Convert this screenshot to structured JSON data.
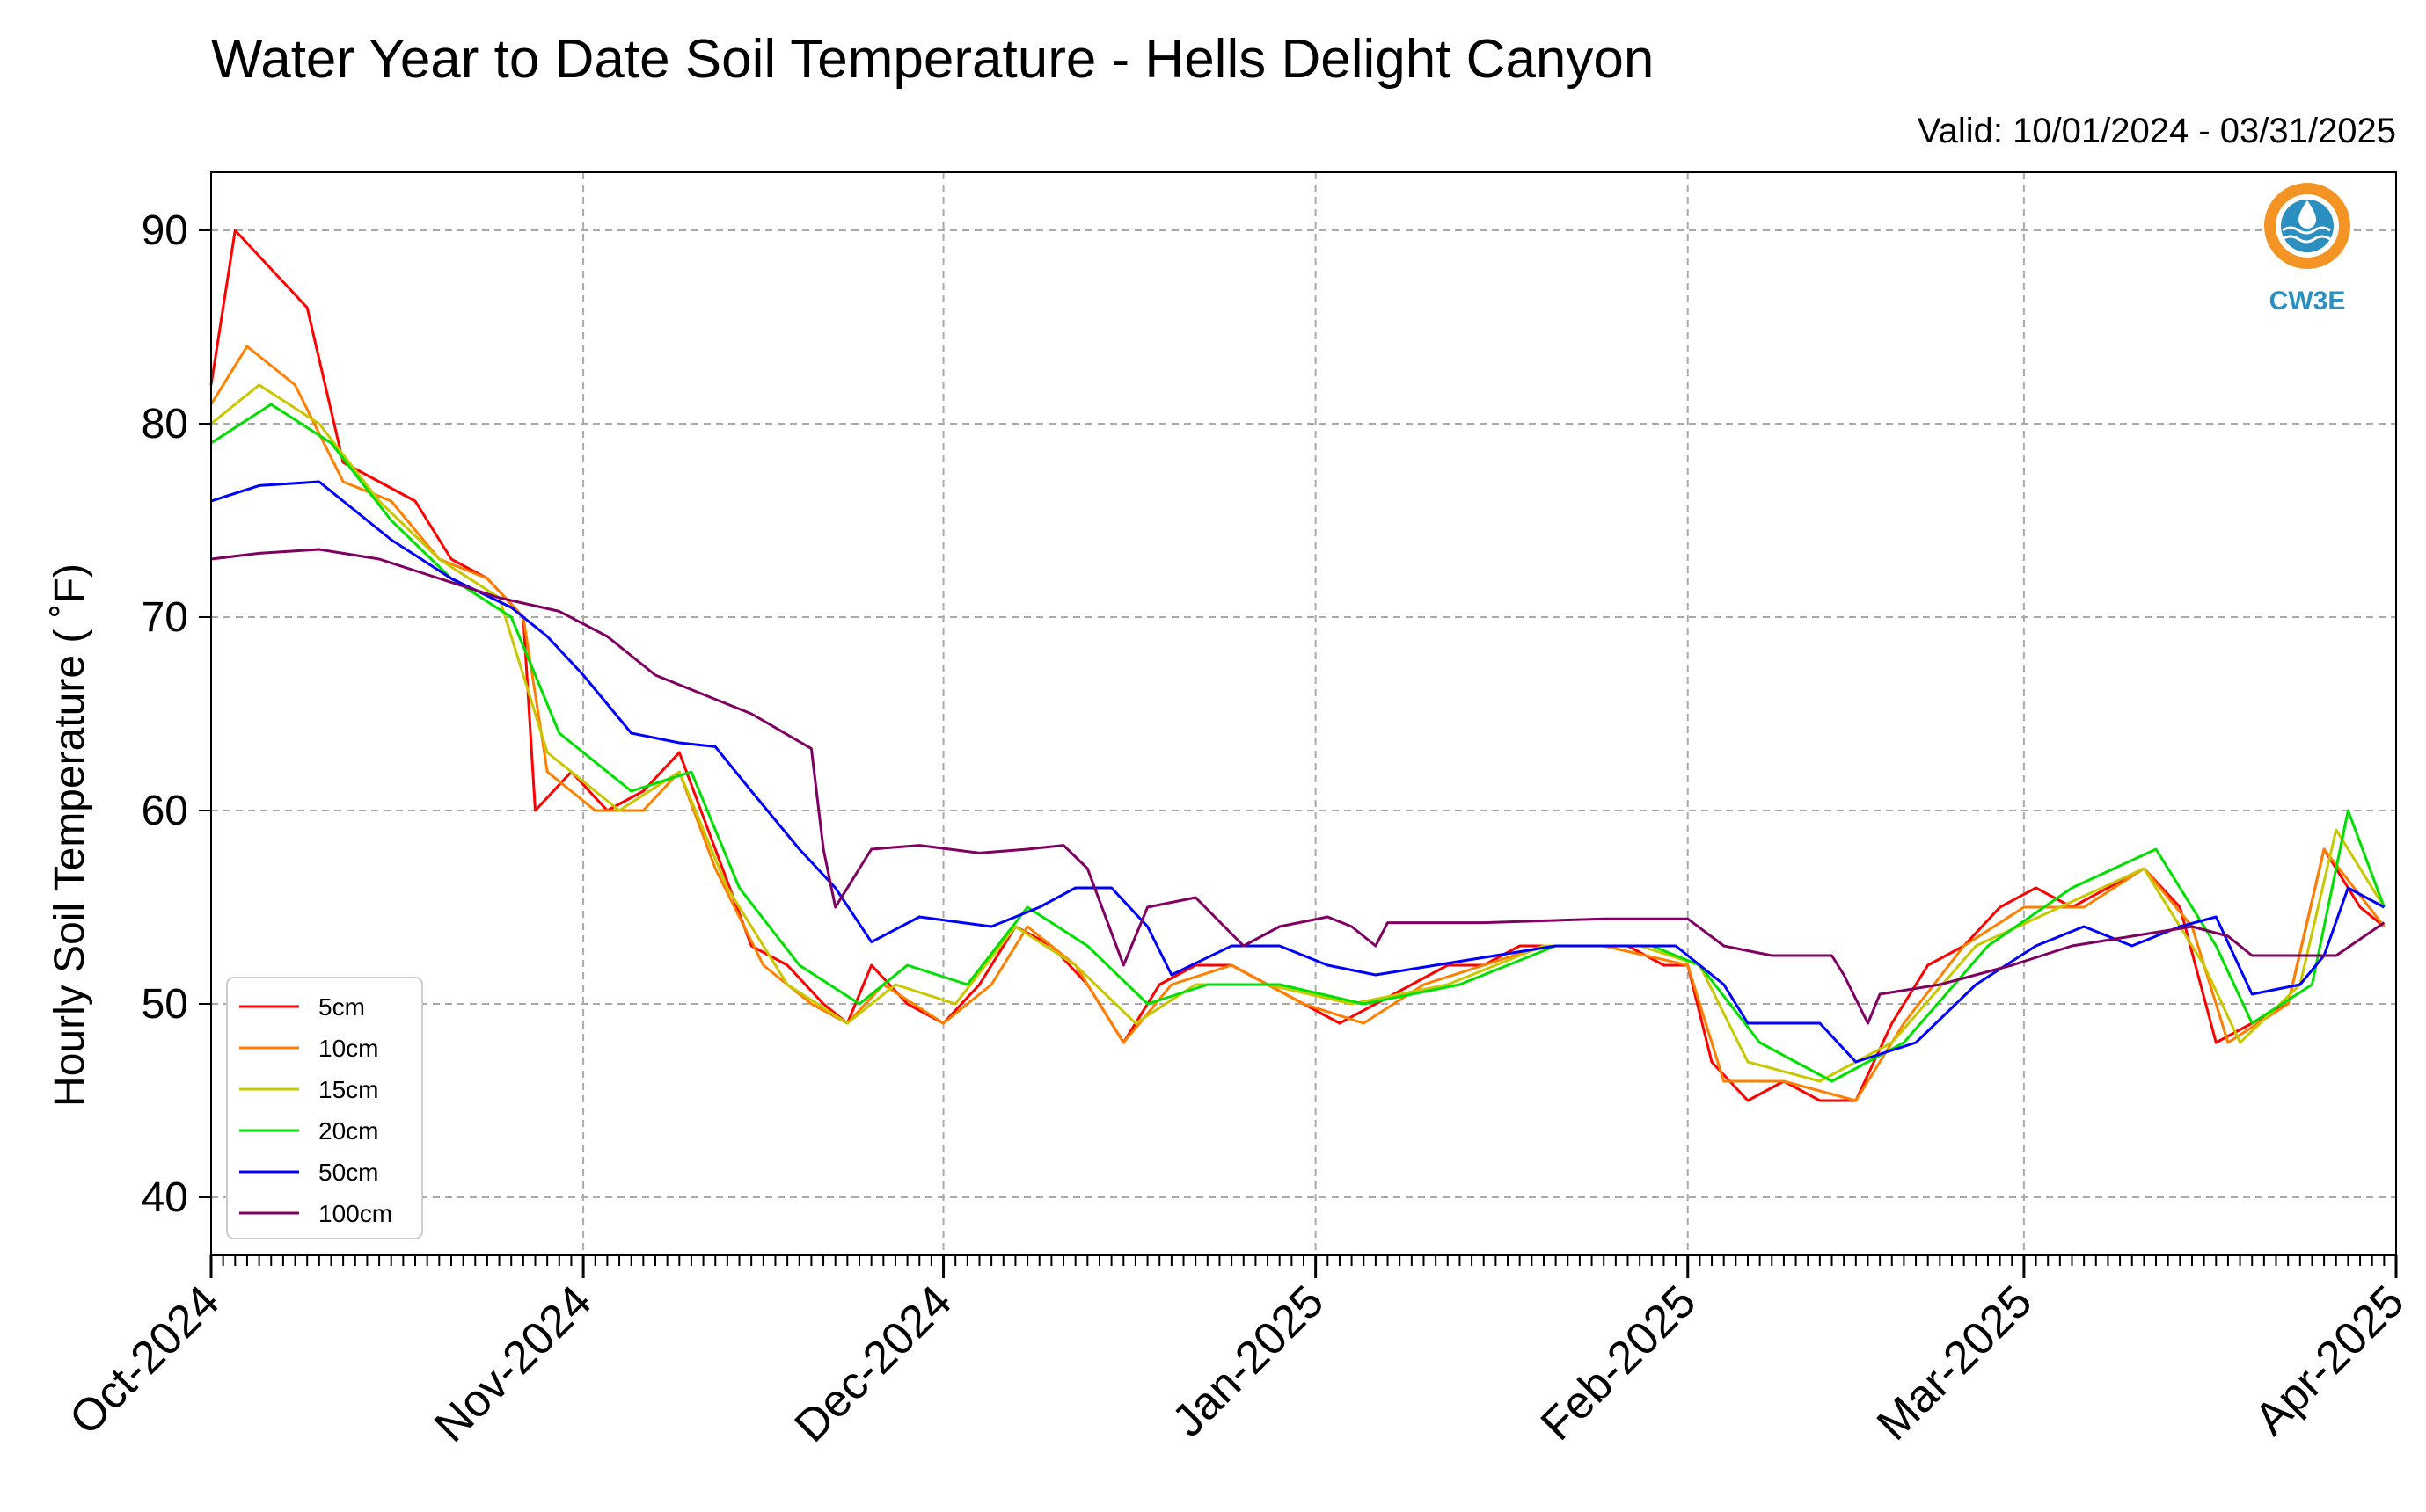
{
  "chart_data": {
    "type": "line",
    "title": "Water Year to Date Soil Temperature - Hells Delight Canyon",
    "subtitle": "Valid: 10/01/2024 - 03/31/2025",
    "xlabel": "",
    "ylabel": "Hourly Soil Temperature ( ˚F)",
    "ylim": [
      37,
      93
    ],
    "yticks": [
      40,
      50,
      60,
      70,
      80,
      90
    ],
    "xlim": [
      "2024-10-01",
      "2025-04-01"
    ],
    "xticks": [
      {
        "date": "2024-10-01",
        "label": "Oct-2024"
      },
      {
        "date": "2024-11-01",
        "label": "Nov-2024"
      },
      {
        "date": "2024-12-01",
        "label": "Dec-2024"
      },
      {
        "date": "2025-01-01",
        "label": "Jan-2025"
      },
      {
        "date": "2025-02-01",
        "label": "Feb-2025"
      },
      {
        "date": "2025-03-01",
        "label": "Mar-2025"
      },
      {
        "date": "2025-04-01",
        "label": "Apr-2025"
      }
    ],
    "grid": true,
    "legend_position": "lower-left",
    "logo_text": "CW3E",
    "series": [
      {
        "name": "5cm",
        "color": "#ff0000",
        "points": [
          [
            "2024-10-01",
            82
          ],
          [
            "2024-10-03",
            90
          ],
          [
            "2024-10-06",
            88
          ],
          [
            "2024-10-09",
            86
          ],
          [
            "2024-10-12",
            78
          ],
          [
            "2024-10-15",
            77
          ],
          [
            "2024-10-18",
            76
          ],
          [
            "2024-10-21",
            73
          ],
          [
            "2024-10-24",
            72
          ],
          [
            "2024-10-27",
            70
          ],
          [
            "2024-10-28",
            60
          ],
          [
            "2024-10-31",
            62
          ],
          [
            "2024-11-03",
            60
          ],
          [
            "2024-11-06",
            61
          ],
          [
            "2024-11-09",
            63
          ],
          [
            "2024-11-12",
            58
          ],
          [
            "2024-11-15",
            53
          ],
          [
            "2024-11-18",
            52
          ],
          [
            "2024-11-21",
            50
          ],
          [
            "2024-11-23",
            49
          ],
          [
            "2024-11-25",
            52
          ],
          [
            "2024-11-28",
            50
          ],
          [
            "2024-12-01",
            49
          ],
          [
            "2024-12-04",
            51
          ],
          [
            "2024-12-07",
            54
          ],
          [
            "2024-12-10",
            53
          ],
          [
            "2024-12-13",
            51
          ],
          [
            "2024-12-16",
            48
          ],
          [
            "2024-12-19",
            51
          ],
          [
            "2024-12-22",
            52
          ],
          [
            "2024-12-25",
            52
          ],
          [
            "2024-12-28",
            51
          ],
          [
            "2024-12-31",
            50
          ],
          [
            "2025-01-03",
            49
          ],
          [
            "2025-01-06",
            50
          ],
          [
            "2025-01-09",
            51
          ],
          [
            "2025-01-12",
            52
          ],
          [
            "2025-01-15",
            52
          ],
          [
            "2025-01-18",
            53
          ],
          [
            "2025-01-21",
            53
          ],
          [
            "2025-01-24",
            53
          ],
          [
            "2025-01-27",
            53
          ],
          [
            "2025-01-30",
            52
          ],
          [
            "2025-02-01",
            52
          ],
          [
            "2025-02-03",
            47
          ],
          [
            "2025-02-06",
            45
          ],
          [
            "2025-02-09",
            46
          ],
          [
            "2025-02-12",
            45
          ],
          [
            "2025-02-15",
            45
          ],
          [
            "2025-02-18",
            49
          ],
          [
            "2025-02-21",
            52
          ],
          [
            "2025-02-24",
            53
          ],
          [
            "2025-02-27",
            55
          ],
          [
            "2025-03-02",
            56
          ],
          [
            "2025-03-05",
            55
          ],
          [
            "2025-03-08",
            56
          ],
          [
            "2025-03-11",
            57
          ],
          [
            "2025-03-14",
            55
          ],
          [
            "2025-03-17",
            48
          ],
          [
            "2025-03-20",
            49
          ],
          [
            "2025-03-23",
            50
          ],
          [
            "2025-03-26",
            58
          ],
          [
            "2025-03-29",
            55
          ],
          [
            "2025-03-31",
            54
          ]
        ]
      },
      {
        "name": "10cm",
        "color": "#ff8000",
        "points": [
          [
            "2024-10-01",
            81
          ],
          [
            "2024-10-04",
            84
          ],
          [
            "2024-10-08",
            82
          ],
          [
            "2024-10-12",
            77
          ],
          [
            "2024-10-16",
            76
          ],
          [
            "2024-10-20",
            73
          ],
          [
            "2024-10-24",
            72
          ],
          [
            "2024-10-27",
            70
          ],
          [
            "2024-10-29",
            62
          ],
          [
            "2024-11-02",
            60
          ],
          [
            "2024-11-06",
            60
          ],
          [
            "2024-11-09",
            62
          ],
          [
            "2024-11-12",
            57
          ],
          [
            "2024-11-16",
            52
          ],
          [
            "2024-11-20",
            50
          ],
          [
            "2024-11-23",
            49
          ],
          [
            "2024-11-26",
            51
          ],
          [
            "2024-12-01",
            49
          ],
          [
            "2024-12-05",
            51
          ],
          [
            "2024-12-08",
            54
          ],
          [
            "2024-12-12",
            52
          ],
          [
            "2024-12-16",
            48
          ],
          [
            "2024-12-20",
            51
          ],
          [
            "2024-12-25",
            52
          ],
          [
            "2024-12-31",
            50
          ],
          [
            "2025-01-05",
            49
          ],
          [
            "2025-01-10",
            51
          ],
          [
            "2025-01-15",
            52
          ],
          [
            "2025-01-20",
            53
          ],
          [
            "2025-01-25",
            53
          ],
          [
            "2025-02-01",
            52
          ],
          [
            "2025-02-04",
            46
          ],
          [
            "2025-02-09",
            46
          ],
          [
            "2025-02-15",
            45
          ],
          [
            "2025-02-19",
            49
          ],
          [
            "2025-02-24",
            53
          ],
          [
            "2025-03-01",
            55
          ],
          [
            "2025-03-06",
            55
          ],
          [
            "2025-03-11",
            57
          ],
          [
            "2025-03-15",
            54
          ],
          [
            "2025-03-18",
            48
          ],
          [
            "2025-03-23",
            50
          ],
          [
            "2025-03-26",
            58
          ],
          [
            "2025-03-31",
            54
          ]
        ]
      },
      {
        "name": "15cm",
        "color": "#c8c800",
        "points": [
          [
            "2024-10-01",
            80
          ],
          [
            "2024-10-05",
            82
          ],
          [
            "2024-10-10",
            80
          ],
          [
            "2024-10-15",
            76
          ],
          [
            "2024-10-20",
            73
          ],
          [
            "2024-10-25",
            71
          ],
          [
            "2024-10-29",
            63
          ],
          [
            "2024-11-04",
            60
          ],
          [
            "2024-11-09",
            62
          ],
          [
            "2024-11-13",
            56
          ],
          [
            "2024-11-18",
            51
          ],
          [
            "2024-11-23",
            49
          ],
          [
            "2024-11-27",
            51
          ],
          [
            "2024-12-02",
            50
          ],
          [
            "2024-12-07",
            54
          ],
          [
            "2024-12-12",
            52
          ],
          [
            "2024-12-17",
            49
          ],
          [
            "2024-12-22",
            51
          ],
          [
            "2024-12-28",
            51
          ],
          [
            "2025-01-04",
            50
          ],
          [
            "2025-01-12",
            51
          ],
          [
            "2025-01-20",
            53
          ],
          [
            "2025-01-28",
            53
          ],
          [
            "2025-02-02",
            52
          ],
          [
            "2025-02-06",
            47
          ],
          [
            "2025-02-12",
            46
          ],
          [
            "2025-02-18",
            48
          ],
          [
            "2025-02-25",
            53
          ],
          [
            "2025-03-04",
            55
          ],
          [
            "2025-03-11",
            57
          ],
          [
            "2025-03-16",
            52
          ],
          [
            "2025-03-19",
            48
          ],
          [
            "2025-03-24",
            51
          ],
          [
            "2025-03-27",
            59
          ],
          [
            "2025-03-31",
            55
          ]
        ]
      },
      {
        "name": "20cm",
        "color": "#00e000",
        "points": [
          [
            "2024-10-01",
            79
          ],
          [
            "2024-10-06",
            81
          ],
          [
            "2024-10-11",
            79
          ],
          [
            "2024-10-16",
            75
          ],
          [
            "2024-10-21",
            72
          ],
          [
            "2024-10-26",
            70
          ],
          [
            "2024-10-30",
            64
          ],
          [
            "2024-11-05",
            61
          ],
          [
            "2024-11-10",
            62
          ],
          [
            "2024-11-14",
            56
          ],
          [
            "2024-11-19",
            52
          ],
          [
            "2024-11-24",
            50
          ],
          [
            "2024-11-28",
            52
          ],
          [
            "2024-12-03",
            51
          ],
          [
            "2024-12-08",
            55
          ],
          [
            "2024-12-13",
            53
          ],
          [
            "2024-12-18",
            50
          ],
          [
            "2024-12-23",
            51
          ],
          [
            "2024-12-29",
            51
          ],
          [
            "2025-01-05",
            50
          ],
          [
            "2025-01-13",
            51
          ],
          [
            "2025-01-21",
            53
          ],
          [
            "2025-01-29",
            53
          ],
          [
            "2025-02-02",
            52
          ],
          [
            "2025-02-07",
            48
          ],
          [
            "2025-02-13",
            46
          ],
          [
            "2025-02-19",
            48
          ],
          [
            "2025-02-26",
            53
          ],
          [
            "2025-03-05",
            56
          ],
          [
            "2025-03-12",
            58
          ],
          [
            "2025-03-17",
            53
          ],
          [
            "2025-03-20",
            49
          ],
          [
            "2025-03-25",
            51
          ],
          [
            "2025-03-28",
            60
          ],
          [
            "2025-03-31",
            55
          ]
        ]
      },
      {
        "name": "50cm",
        "color": "#0000ff",
        "points": [
          [
            "2024-10-01",
            76
          ],
          [
            "2024-10-05",
            76.8
          ],
          [
            "2024-10-10",
            77
          ],
          [
            "2024-10-13",
            75.5
          ],
          [
            "2024-10-16",
            74
          ],
          [
            "2024-10-21",
            72
          ],
          [
            "2024-10-26",
            70.5
          ],
          [
            "2024-10-29",
            69
          ],
          [
            "2024-11-01",
            67
          ],
          [
            "2024-11-05",
            64
          ],
          [
            "2024-11-09",
            63.5
          ],
          [
            "2024-11-12",
            63.3
          ],
          [
            "2024-11-15",
            61
          ],
          [
            "2024-11-19",
            58
          ],
          [
            "2024-11-22",
            56
          ],
          [
            "2024-11-25",
            53.2
          ],
          [
            "2024-11-29",
            54.5
          ],
          [
            "2024-12-05",
            54
          ],
          [
            "2024-12-09",
            55
          ],
          [
            "2024-12-12",
            56
          ],
          [
            "2024-12-15",
            56
          ],
          [
            "2024-12-18",
            54
          ],
          [
            "2024-12-20",
            51.5
          ],
          [
            "2024-12-25",
            53
          ],
          [
            "2024-12-29",
            53
          ],
          [
            "2025-01-02",
            52
          ],
          [
            "2025-01-06",
            51.5
          ],
          [
            "2025-01-11",
            52
          ],
          [
            "2025-01-16",
            52.5
          ],
          [
            "2025-01-21",
            53
          ],
          [
            "2025-01-26",
            53
          ],
          [
            "2025-01-31",
            53
          ],
          [
            "2025-02-04",
            51
          ],
          [
            "2025-02-06",
            49
          ],
          [
            "2025-02-12",
            49
          ],
          [
            "2025-02-15",
            47
          ],
          [
            "2025-02-20",
            48
          ],
          [
            "2025-02-25",
            51
          ],
          [
            "2025-03-02",
            53
          ],
          [
            "2025-03-06",
            54
          ],
          [
            "2025-03-10",
            53
          ],
          [
            "2025-03-14",
            54
          ],
          [
            "2025-03-17",
            54.5
          ],
          [
            "2025-03-20",
            50.5
          ],
          [
            "2025-03-24",
            51
          ],
          [
            "2025-03-26",
            52.5
          ],
          [
            "2025-03-28",
            56
          ],
          [
            "2025-03-31",
            55
          ]
        ]
      },
      {
        "name": "100cm",
        "color": "#800060",
        "points": [
          [
            "2024-10-01",
            73
          ],
          [
            "2024-10-05",
            73.3
          ],
          [
            "2024-10-10",
            73.5
          ],
          [
            "2024-10-15",
            73
          ],
          [
            "2024-10-20",
            72
          ],
          [
            "2024-10-25",
            71
          ],
          [
            "2024-10-30",
            70.3
          ],
          [
            "2024-11-03",
            69
          ],
          [
            "2024-11-07",
            67
          ],
          [
            "2024-11-11",
            66
          ],
          [
            "2024-11-15",
            65
          ],
          [
            "2024-11-20",
            63.2
          ],
          [
            "2024-11-21",
            58
          ],
          [
            "2024-11-22",
            55
          ],
          [
            "2024-11-25",
            58
          ],
          [
            "2024-11-29",
            58.2
          ],
          [
            "2024-12-04",
            57.8
          ],
          [
            "2024-12-08",
            58
          ],
          [
            "2024-12-11",
            58.2
          ],
          [
            "2024-12-13",
            57
          ],
          [
            "2024-12-16",
            52
          ],
          [
            "2024-12-18",
            55
          ],
          [
            "2024-12-22",
            55.5
          ],
          [
            "2024-12-26",
            53
          ],
          [
            "2024-12-29",
            54
          ],
          [
            "2025-01-02",
            54.5
          ],
          [
            "2025-01-04",
            54
          ],
          [
            "2025-01-06",
            53
          ],
          [
            "2025-01-07",
            54.2
          ],
          [
            "2025-01-15",
            54.2
          ],
          [
            "2025-01-25",
            54.4
          ],
          [
            "2025-02-01",
            54.4
          ],
          [
            "2025-02-04",
            53
          ],
          [
            "2025-02-08",
            52.5
          ],
          [
            "2025-02-13",
            52.5
          ],
          [
            "2025-02-14",
            51.5
          ],
          [
            "2025-02-16",
            49
          ],
          [
            "2025-02-17",
            50.5
          ],
          [
            "2025-02-22",
            51
          ],
          [
            "2025-02-28",
            52
          ],
          [
            "2025-03-05",
            53
          ],
          [
            "2025-03-10",
            53.5
          ],
          [
            "2025-03-15",
            54
          ],
          [
            "2025-03-18",
            53.5
          ],
          [
            "2025-03-20",
            52.5
          ],
          [
            "2025-03-24",
            52.5
          ],
          [
            "2025-03-27",
            52.5
          ],
          [
            "2025-03-31",
            54.2
          ]
        ]
      }
    ]
  }
}
